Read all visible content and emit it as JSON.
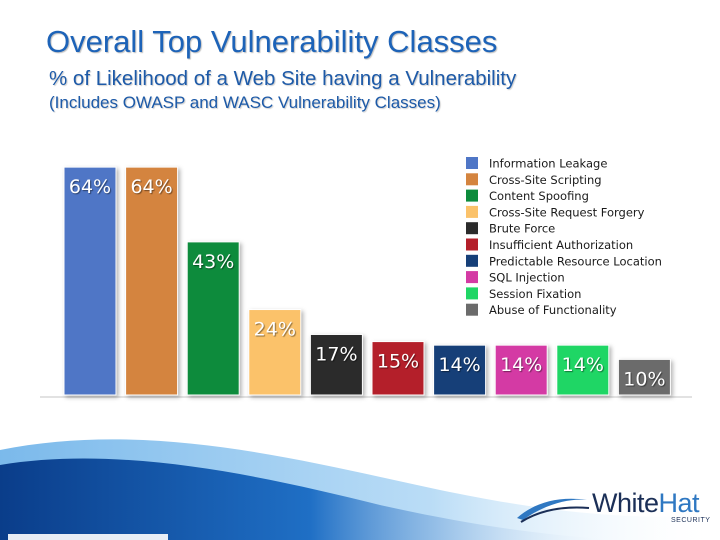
{
  "slide": {
    "title": "Overall Top Vulnerability Classes",
    "subtitle": "% of Likelihood of a Web Site having a Vulnerability",
    "subtitle2": "(Includes OWASP and WASC Vulnerability Classes)"
  },
  "logo": {
    "name_a": "White",
    "name_b": "Hat",
    "tagline": "SECURITY"
  },
  "chart_data": {
    "type": "bar",
    "ylim": [
      0,
      66
    ],
    "grid": false,
    "legend_position": "top-right",
    "value_suffix": "%",
    "series": [
      {
        "name": "Information Leakage",
        "value": 64,
        "color": "#4f76c6",
        "label_color": "#ffffff"
      },
      {
        "name": "Cross-Site Scripting",
        "value": 64,
        "color": "#d4843f",
        "label_color": "#ffffff"
      },
      {
        "name": "Content Spoofing",
        "value": 43,
        "color": "#0d8b3c",
        "label_color": "#ffffff"
      },
      {
        "name": "Cross-Site Request Forgery",
        "value": 24,
        "color": "#fbc26a",
        "label_color": "#ffffff"
      },
      {
        "name": "Brute Force",
        "value": 17,
        "color": "#2b2b2b",
        "label_color": "#ffffff"
      },
      {
        "name": "Insufficient Authorization",
        "value": 15,
        "color": "#b41f2a",
        "label_color": "#ffffff"
      },
      {
        "name": "Predictable Resource Location",
        "value": 14,
        "color": "#163f78",
        "label_color": "#ffffff"
      },
      {
        "name": "SQL Injection",
        "value": 14,
        "color": "#d43aa4",
        "label_color": "#ffffff"
      },
      {
        "name": "Session Fixation",
        "value": 14,
        "color": "#1fd665",
        "label_color": "#ffffff"
      },
      {
        "name": "Abuse of Functionality",
        "value": 10,
        "color": "#6b6b6b",
        "label_color": "#ffffff"
      }
    ]
  }
}
